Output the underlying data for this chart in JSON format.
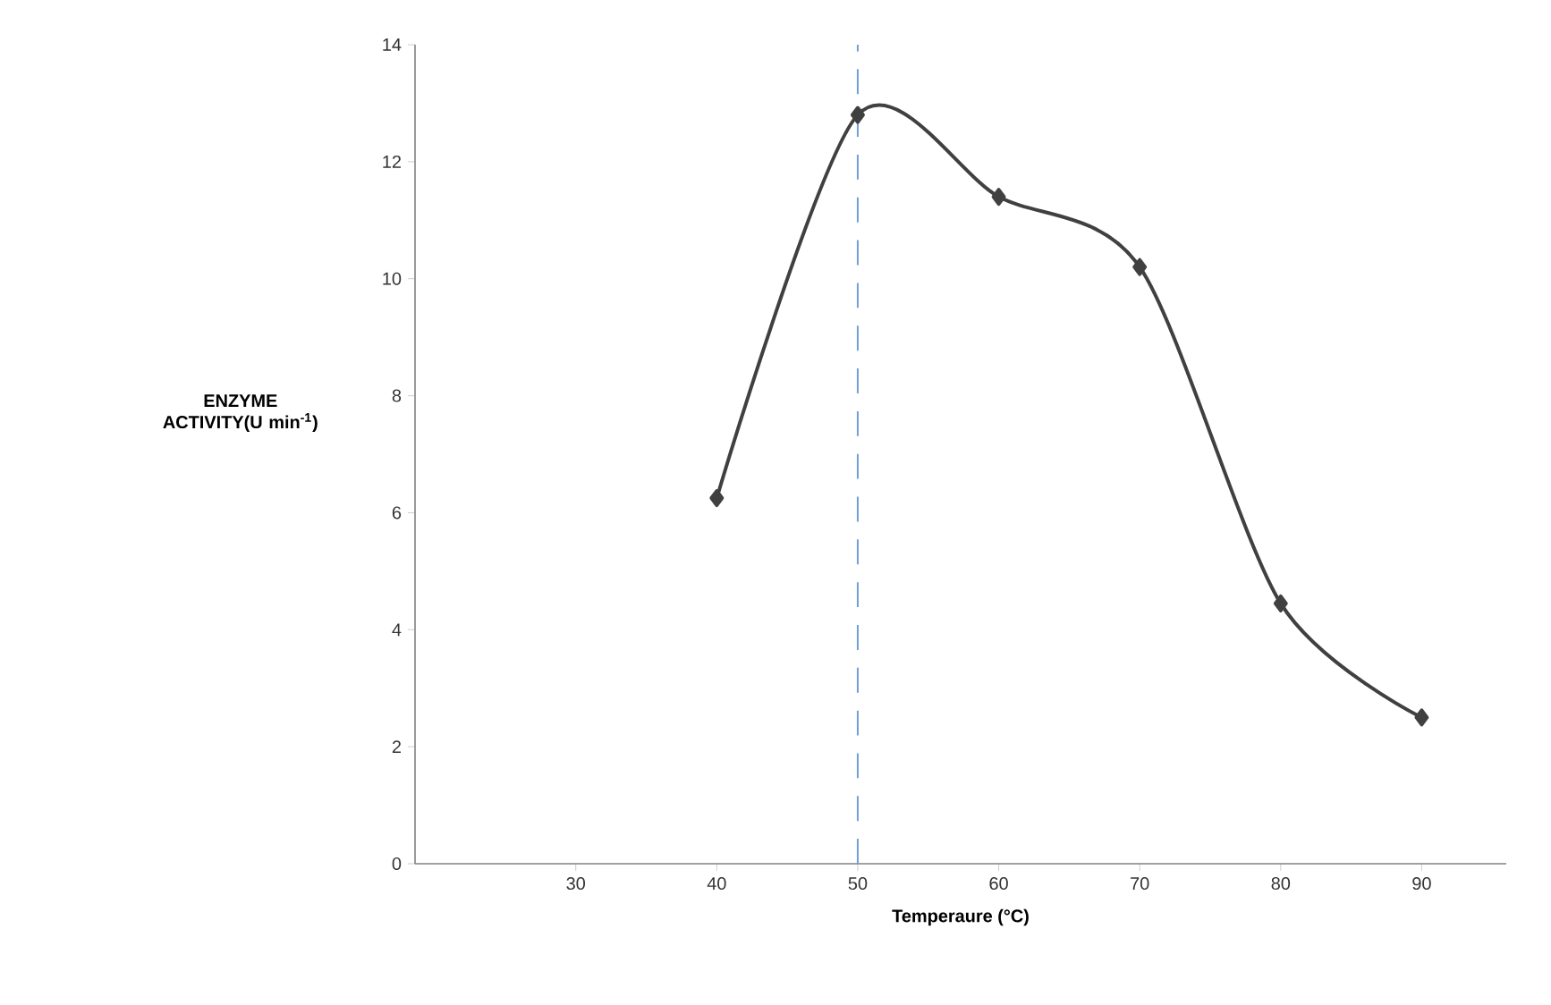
{
  "chart_data": {
    "type": "line",
    "xlabel": "Temperaure (°C)",
    "ylabel": "ENZYME ACTIVITY(U min$^{-1}$)",
    "x": [
      40,
      50,
      60,
      70,
      80,
      90
    ],
    "series": [
      {
        "color": "#404040",
        "values": [
          6.25,
          12.8,
          11.4,
          10.2,
          4.45,
          2.5
        ]
      }
    ],
    "xlim": [
      18.6,
      96
    ],
    "xticks": [
      30,
      40,
      50,
      60,
      70,
      80,
      90
    ],
    "ylim": [
      0,
      14
    ],
    "yticks": [
      0,
      2,
      4,
      6,
      8,
      10,
      12,
      14
    ],
    "marker": "diamond",
    "line_style": "solid",
    "grid": false,
    "ref_lines": [
      {
        "axis": "x",
        "value": 50,
        "color": "#6f9fd8",
        "line_style": "dashed"
      }
    ]
  }
}
